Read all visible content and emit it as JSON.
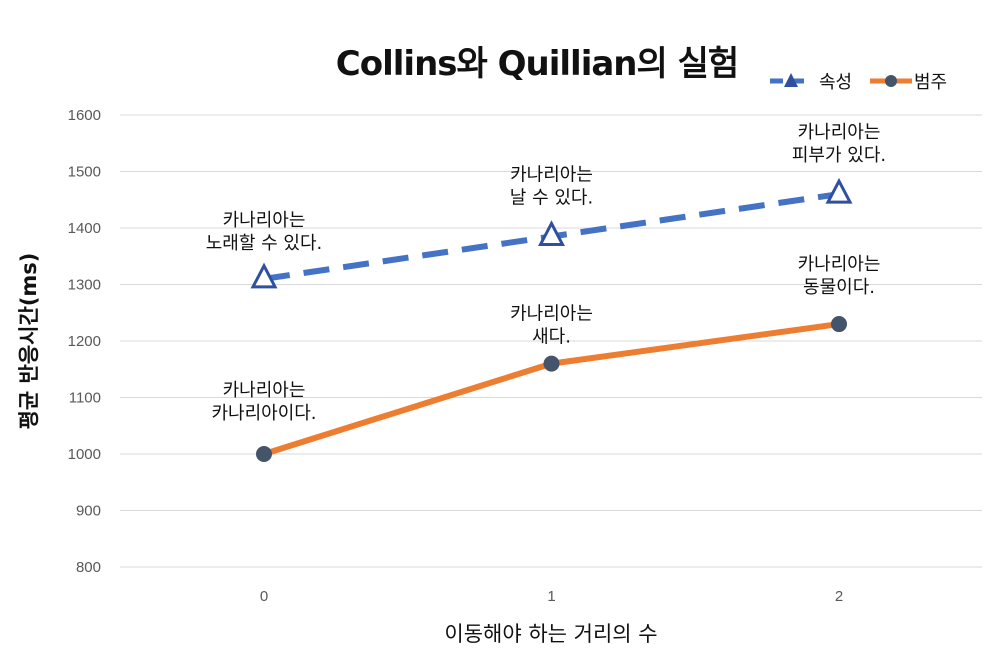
{
  "chart_data": {
    "type": "line",
    "title": "Collins와 Quillian의 실험",
    "xlabel": "이동해야 하는 거리의 수",
    "ylabel": "평균 반응시간(ms)",
    "categories": [
      "0",
      "1",
      "2"
    ],
    "yticks": [
      "800",
      "900",
      "1000",
      "1100",
      "1200",
      "1300",
      "1400",
      "1500",
      "1600"
    ],
    "ylim": [
      800,
      1600
    ],
    "grid": true,
    "legend_position": "top-right",
    "series": [
      {
        "name": "속성",
        "color": "#4472C4",
        "line_style": "dashed",
        "marker": "triangle",
        "values": [
          1310,
          1385,
          1460
        ],
        "annotations": [
          [
            "카나리아는",
            "노래할 수 있다."
          ],
          [
            "카나리아는",
            "날 수 있다."
          ],
          [
            "카나리아는",
            "피부가 있다."
          ]
        ]
      },
      {
        "name": "범주",
        "color": "#ED7D31",
        "line_style": "solid",
        "marker": "circle",
        "marker_color": "#44546A",
        "values": [
          1000,
          1160,
          1230
        ],
        "annotations": [
          [
            "카나리아는",
            "카나리아이다."
          ],
          [
            "카나리아는",
            "새다."
          ],
          [
            "카나리아는",
            "동물이다."
          ]
        ]
      }
    ]
  }
}
